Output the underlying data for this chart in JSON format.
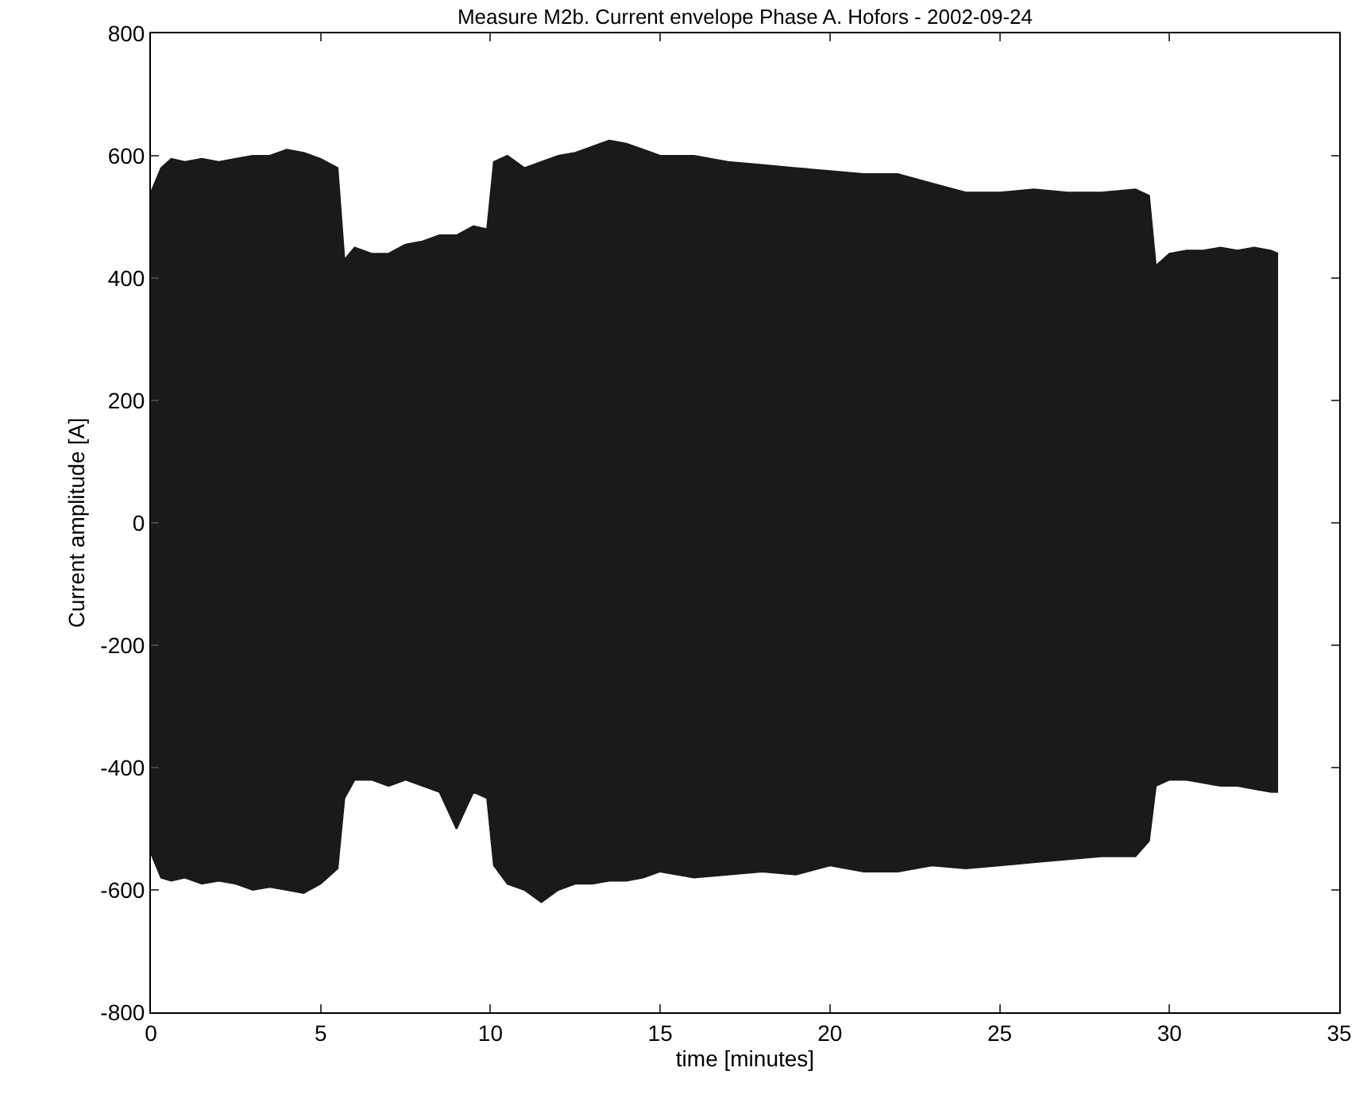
{
  "chart_data": {
    "type": "area",
    "title": "Measure M2b. Current envelope Phase A. Hofors - 2002-09-24",
    "xlabel": "time [minutes]",
    "ylabel": "Current amplitude [A]",
    "x": [
      0,
      0.3,
      0.6,
      1,
      1.5,
      2,
      2.5,
      3,
      3.5,
      4,
      4.5,
      5,
      5.5,
      5.7,
      6,
      6.5,
      7,
      7.5,
      8,
      8.5,
      9,
      9.5,
      9.9,
      10.1,
      10.5,
      11,
      11.5,
      12,
      12.5,
      13,
      13.5,
      14,
      14.5,
      15,
      16,
      17,
      18,
      19,
      20,
      21,
      22,
      23,
      24,
      25,
      26,
      27,
      28,
      29,
      29.4,
      29.6,
      30,
      30.5,
      31,
      31.5,
      32,
      32.5,
      33,
      33.2
    ],
    "series": [
      {
        "color": "#1a1a1a",
        "values": [
          540,
          580,
          595,
          590,
          595,
          590,
          595,
          600,
          600,
          610,
          605,
          595,
          580,
          430,
          450,
          440,
          440,
          455,
          460,
          470,
          470,
          485,
          480,
          590,
          600,
          580,
          590,
          600,
          605,
          615,
          625,
          620,
          610,
          600,
          600,
          590,
          585,
          580,
          575,
          570,
          570,
          555,
          540,
          540,
          545,
          540,
          540,
          545,
          535,
          420,
          440,
          445,
          445,
          450,
          445,
          450,
          445,
          440
        ]
      },
      {
        "color": "#1a1a1a",
        "values": [
          -540,
          -580,
          -585,
          -580,
          -590,
          -585,
          -590,
          -600,
          -595,
          -600,
          -605,
          -590,
          -565,
          -450,
          -420,
          -420,
          -430,
          -420,
          -430,
          -440,
          -500,
          -440,
          -450,
          -560,
          -590,
          -600,
          -620,
          -600,
          -590,
          -590,
          -585,
          -585,
          -580,
          -570,
          -580,
          -575,
          -570,
          -575,
          -560,
          -570,
          -570,
          -560,
          -565,
          -560,
          -555,
          -550,
          -545,
          -545,
          -520,
          -430,
          -420,
          -420,
          -425,
          -430,
          -430,
          -435,
          -440,
          -440
        ]
      }
    ],
    "xlim": [
      0,
      35
    ],
    "xticks": [
      0,
      5,
      10,
      15,
      20,
      25,
      30,
      35
    ],
    "ylim": [
      -800,
      800
    ],
    "yticks": [
      -800,
      -600,
      -400,
      -200,
      0,
      200,
      400,
      600,
      800
    ]
  }
}
